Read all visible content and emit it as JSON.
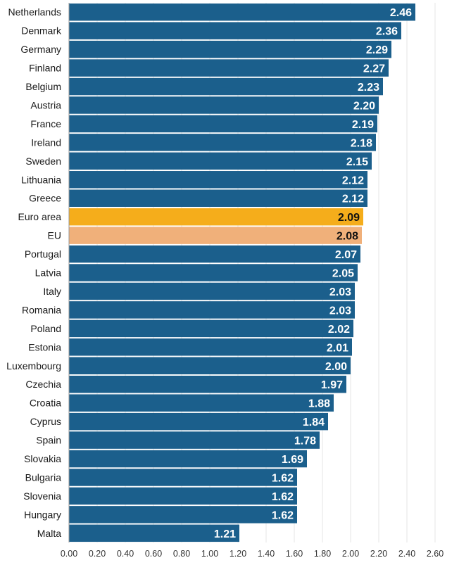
{
  "chart_data": {
    "type": "bar",
    "orientation": "horizontal",
    "title": "",
    "xlabel": "",
    "ylabel": "",
    "xlim": [
      0,
      2.6
    ],
    "ticks": [
      0,
      0.2,
      0.4,
      0.6,
      0.8,
      1.0,
      1.2,
      1.4,
      1.6,
      1.8,
      2.0,
      2.2,
      2.4,
      2.6
    ],
    "tick_labels": [
      "0.00",
      "0.20",
      "0.40",
      "0.60",
      "0.80",
      "1.00",
      "1.20",
      "1.40",
      "1.60",
      "1.80",
      "2.00",
      "2.20",
      "2.40",
      "2.60"
    ],
    "grid": true,
    "legend": "none",
    "categories": [
      "Netherlands",
      "Denmark",
      "Germany",
      "Finland",
      "Belgium",
      "Austria",
      "France",
      "Ireland",
      "Sweden",
      "Lithuania",
      "Greece",
      "Euro area",
      "EU",
      "Portugal",
      "Latvia",
      "Italy",
      "Romania",
      "Poland",
      "Estonia",
      "Luxembourg",
      "Czechia",
      "Croatia",
      "Cyprus",
      "Spain",
      "Slovakia",
      "Bulgaria",
      "Slovenia",
      "Hungary",
      "Malta"
    ],
    "values": [
      2.46,
      2.36,
      2.29,
      2.27,
      2.23,
      2.2,
      2.19,
      2.18,
      2.15,
      2.12,
      2.12,
      2.09,
      2.08,
      2.07,
      2.05,
      2.03,
      2.03,
      2.02,
      2.01,
      2.0,
      1.97,
      1.88,
      1.84,
      1.78,
      1.69,
      1.62,
      1.62,
      1.62,
      1.21
    ],
    "value_labels": [
      "2.46",
      "2.36",
      "2.29",
      "2.27",
      "2.23",
      "2.20",
      "2.19",
      "2.18",
      "2.15",
      "2.12",
      "2.12",
      "2.09",
      "2.08",
      "2.07",
      "2.05",
      "2.03",
      "2.03",
      "2.02",
      "2.01",
      "2.00",
      "1.97",
      "1.88",
      "1.84",
      "1.78",
      "1.69",
      "1.62",
      "1.62",
      "1.62",
      "1.21"
    ],
    "colors": {
      "default": "#1b5f8c",
      "Euro area": "#f5ad1b",
      "EU": "#f0b07a",
      "label_on_default": "#ffffff",
      "label_on_highlight": "#111111"
    }
  }
}
